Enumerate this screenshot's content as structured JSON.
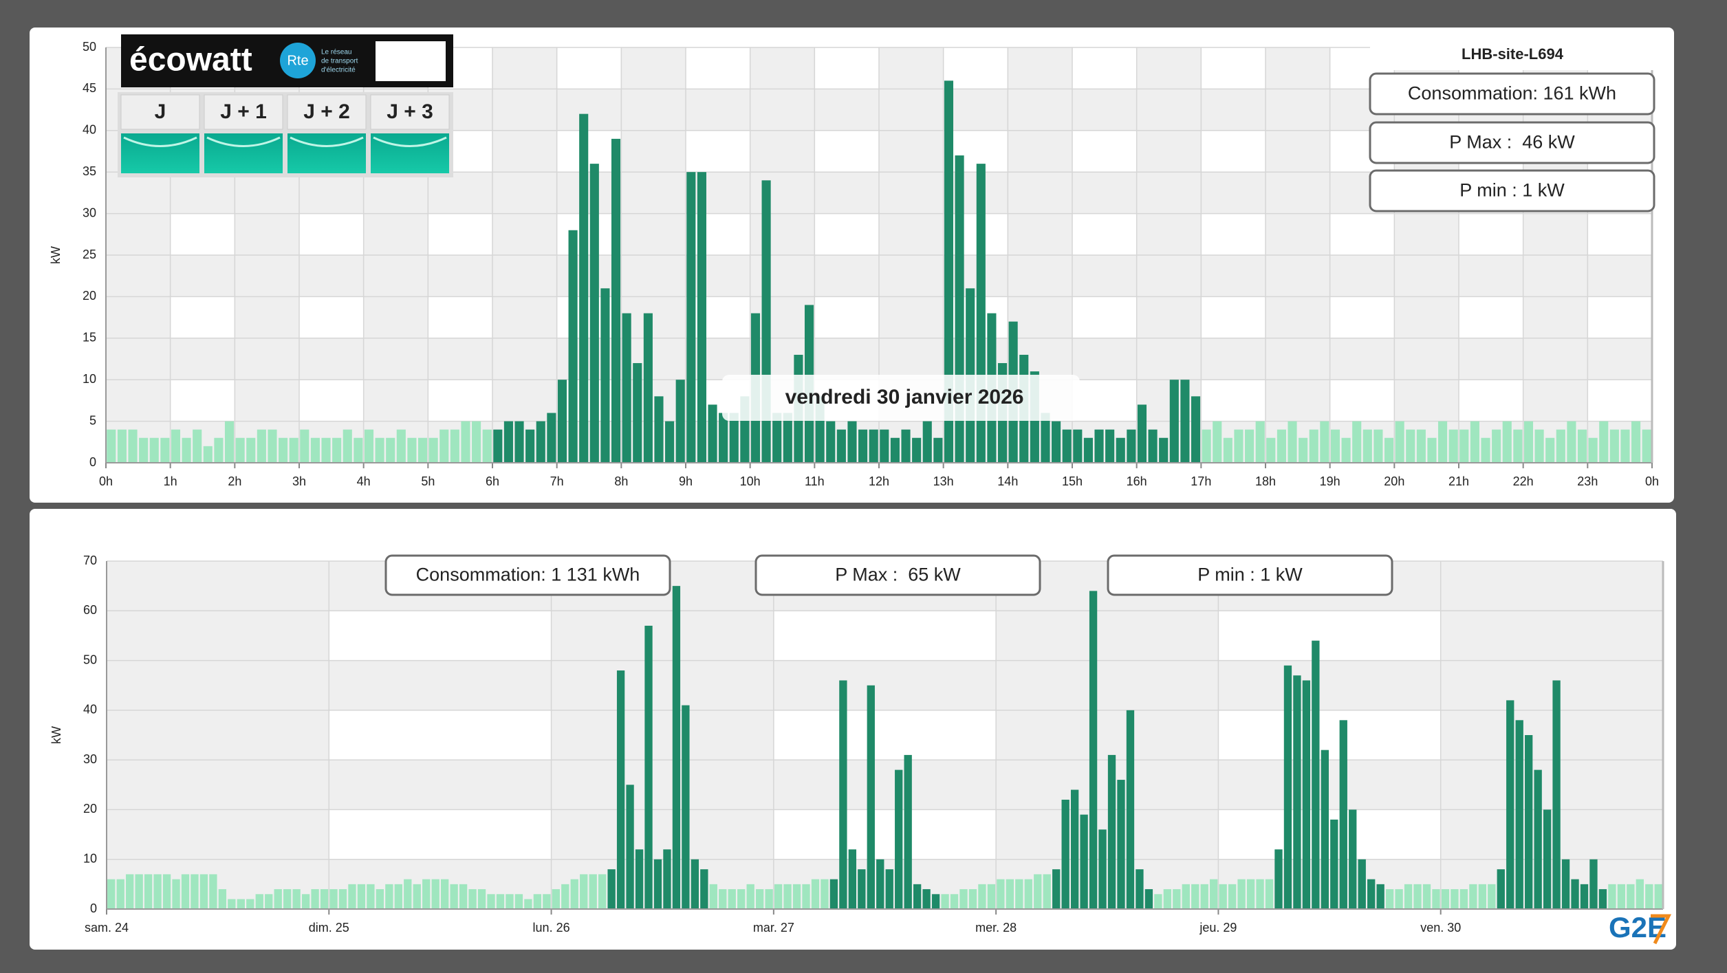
{
  "ecowatt": {
    "brand": "écowatt",
    "rte": "Rte",
    "rte_tagline": [
      "Le réseau",
      "de transport",
      "d'électricité"
    ],
    "days": [
      "J",
      "J + 1",
      "J + 2",
      "J + 3"
    ]
  },
  "logo": "G2E",
  "chart_data": [
    {
      "type": "bar",
      "title": "LHB-site-L694",
      "ylabel": "kW",
      "annotations": [
        "Consommation: 161 kWh",
        "P Max :  46 kW",
        "P min : 1 kW"
      ],
      "tooltip": "vendredi 30 janvier 2026",
      "xlim": [
        0,
        1440
      ],
      "xticks": [
        {
          "value": 0,
          "label": "0h"
        },
        {
          "value": 60,
          "label": "1h"
        },
        {
          "value": 120,
          "label": "2h"
        },
        {
          "value": 180,
          "label": "3h"
        },
        {
          "value": 240,
          "label": "4h"
        },
        {
          "value": 300,
          "label": "5h"
        },
        {
          "value": 360,
          "label": "6h"
        },
        {
          "value": 420,
          "label": "7h"
        },
        {
          "value": 480,
          "label": "8h"
        },
        {
          "value": 540,
          "label": "9h"
        },
        {
          "value": 600,
          "label": "10h"
        },
        {
          "value": 660,
          "label": "11h"
        },
        {
          "value": 720,
          "label": "12h"
        },
        {
          "value": 780,
          "label": "13h"
        },
        {
          "value": 840,
          "label": "14h"
        },
        {
          "value": 900,
          "label": "15h"
        },
        {
          "value": 960,
          "label": "16h"
        },
        {
          "value": 1020,
          "label": "17h"
        },
        {
          "value": 1080,
          "label": "18h"
        },
        {
          "value": 1140,
          "label": "19h"
        },
        {
          "value": 1200,
          "label": "20h"
        },
        {
          "value": 1260,
          "label": "21h"
        },
        {
          "value": 1320,
          "label": "22h"
        },
        {
          "value": 1380,
          "label": "23h"
        },
        {
          "value": 1440,
          "label": "0h"
        }
      ],
      "ylim": [
        0,
        50
      ],
      "yticks": [
        0,
        5,
        10,
        15,
        20,
        25,
        30,
        35,
        40,
        45,
        50
      ],
      "grid": true,
      "x": [
        0,
        10,
        20,
        30,
        40,
        50,
        60,
        70,
        80,
        90,
        100,
        110,
        120,
        130,
        140,
        150,
        160,
        170,
        180,
        190,
        200,
        210,
        220,
        230,
        240,
        250,
        260,
        270,
        280,
        290,
        300,
        310,
        320,
        330,
        340,
        350,
        360,
        370,
        380,
        390,
        400,
        410,
        420,
        430,
        440,
        450,
        460,
        470,
        480,
        490,
        500,
        510,
        520,
        530,
        540,
        550,
        560,
        570,
        580,
        590,
        600,
        610,
        620,
        630,
        640,
        650,
        660,
        670,
        680,
        690,
        700,
        710,
        720,
        730,
        740,
        750,
        760,
        770,
        780,
        790,
        800,
        810,
        820,
        830,
        840,
        850,
        860,
        870,
        880,
        890,
        900,
        910,
        920,
        930,
        940,
        950,
        960,
        970,
        980,
        990,
        1000,
        1010,
        1020,
        1030,
        1040,
        1050,
        1060,
        1070,
        1080,
        1090,
        1100,
        1110,
        1120,
        1130,
        1140,
        1150,
        1160,
        1170,
        1180,
        1190,
        1200,
        1210,
        1220,
        1230,
        1240,
        1250,
        1260,
        1270,
        1280,
        1290,
        1300,
        1310,
        1320,
        1330,
        1340,
        1350,
        1360,
        1370,
        1380,
        1390,
        1400,
        1410,
        1420,
        1430
      ],
      "series": [
        {
          "color": "#9fe6bf",
          "values": [
            4,
            4,
            4,
            3,
            3,
            3,
            4,
            3,
            4,
            2,
            3,
            5,
            3,
            3,
            4,
            4,
            3,
            3,
            4,
            3,
            3,
            3,
            4,
            3,
            4,
            3,
            3,
            4,
            3,
            3,
            3,
            4,
            4,
            5,
            5,
            4,
            null,
            null,
            null,
            null,
            null,
            null,
            null,
            null,
            null,
            null,
            null,
            null,
            null,
            null,
            null,
            null,
            null,
            null,
            null,
            null,
            null,
            null,
            null,
            null,
            null,
            null,
            null,
            null,
            null,
            null,
            null,
            null,
            null,
            null,
            null,
            null,
            null,
            null,
            null,
            null,
            null,
            null,
            null,
            null,
            null,
            null,
            null,
            null,
            null,
            null,
            null,
            null,
            null,
            null,
            null,
            null,
            null,
            null,
            null,
            null,
            null,
            null,
            null,
            null,
            null,
            null,
            4,
            5,
            3,
            4,
            4,
            5,
            3,
            4,
            5,
            3,
            4,
            5,
            4,
            3,
            5,
            4,
            4,
            3,
            5,
            4,
            4,
            3,
            5,
            4,
            4,
            5,
            3,
            4,
            5,
            4,
            5,
            4,
            3,
            4,
            5,
            4,
            3,
            5,
            4,
            4,
            5,
            4
          ]
        },
        {
          "color": "#1f8a68",
          "values": [
            null,
            null,
            null,
            null,
            null,
            null,
            null,
            null,
            null,
            null,
            null,
            null,
            null,
            null,
            null,
            null,
            null,
            null,
            null,
            null,
            null,
            null,
            null,
            null,
            null,
            null,
            null,
            null,
            null,
            null,
            null,
            null,
            null,
            null,
            null,
            null,
            4,
            5,
            5,
            4,
            5,
            6,
            10,
            28,
            42,
            36,
            21,
            39,
            18,
            12,
            18,
            8,
            5,
            10,
            35,
            35,
            7,
            6,
            6,
            8,
            18,
            34,
            6,
            6,
            13,
            19,
            8,
            5,
            4,
            5,
            4,
            4,
            4,
            3,
            4,
            3,
            5,
            3,
            46,
            37,
            21,
            36,
            18,
            12,
            17,
            13,
            11,
            6,
            5,
            4,
            4,
            3,
            4,
            4,
            3,
            4,
            7,
            4,
            3,
            10,
            10,
            8,
            null,
            null,
            null,
            null,
            null,
            null,
            null,
            null,
            null,
            null,
            null,
            null,
            null,
            null,
            null,
            null,
            null,
            null,
            null,
            null,
            null,
            null,
            null,
            null,
            null,
            null,
            null,
            null,
            null,
            null,
            null,
            null,
            null,
            null,
            null,
            null,
            null,
            null,
            null,
            null,
            null,
            null
          ]
        }
      ]
    },
    {
      "type": "bar",
      "ylabel": "kW",
      "annotations": [
        "Consommation: 1 131 kWh",
        "P Max :  65 kW",
        "P min : 1 kW"
      ],
      "xlim": [
        0,
        168
      ],
      "xticks": [
        {
          "value": 0,
          "label": "sam. 24"
        },
        {
          "value": 24,
          "label": "dim. 25"
        },
        {
          "value": 48,
          "label": "lun. 26"
        },
        {
          "value": 72,
          "label": "mar. 27"
        },
        {
          "value": 96,
          "label": "mer. 28"
        },
        {
          "value": 120,
          "label": "jeu. 29"
        },
        {
          "value": 144,
          "label": "ven. 30"
        }
      ],
      "ylim": [
        0,
        70
      ],
      "yticks": [
        0,
        10,
        20,
        30,
        40,
        50,
        60,
        70
      ],
      "grid": true,
      "x": [
        0,
        1,
        2,
        3,
        4,
        5,
        6,
        7,
        8,
        9,
        10,
        11,
        12,
        13,
        14,
        15,
        16,
        17,
        18,
        19,
        20,
        21,
        22,
        23,
        24,
        25,
        26,
        27,
        28,
        29,
        30,
        31,
        32,
        33,
        34,
        35,
        36,
        37,
        38,
        39,
        40,
        41,
        42,
        43,
        44,
        45,
        46,
        47,
        48,
        49,
        50,
        51,
        52,
        53,
        54,
        55,
        56,
        57,
        58,
        59,
        60,
        61,
        62,
        63,
        64,
        65,
        66,
        67,
        68,
        69,
        70,
        71,
        72,
        73,
        74,
        75,
        76,
        77,
        78,
        79,
        80,
        81,
        82,
        83,
        84,
        85,
        86,
        87,
        88,
        89,
        90,
        91,
        92,
        93,
        94,
        95,
        96,
        97,
        98,
        99,
        100,
        101,
        102,
        103,
        104,
        105,
        106,
        107,
        108,
        109,
        110,
        111,
        112,
        113,
        114,
        115,
        116,
        117,
        118,
        119,
        120,
        121,
        122,
        123,
        124,
        125,
        126,
        127,
        128,
        129,
        130,
        131,
        132,
        133,
        134,
        135,
        136,
        137,
        138,
        139,
        140,
        141,
        142,
        143,
        144,
        145,
        146,
        147,
        148,
        149,
        150,
        151,
        152,
        153,
        154,
        155,
        156,
        157,
        158,
        159,
        160,
        161,
        162,
        163,
        164,
        165,
        166,
        167
      ],
      "series": [
        {
          "color": "#9fe6bf",
          "values": [
            6,
            6,
            7,
            7,
            7,
            7,
            7,
            6,
            7,
            7,
            7,
            7,
            4,
            2,
            2,
            2,
            3,
            3,
            4,
            4,
            4,
            3,
            4,
            4,
            4,
            4,
            5,
            5,
            5,
            4,
            5,
            5,
            6,
            5,
            6,
            6,
            6,
            5,
            5,
            4,
            4,
            3,
            3,
            3,
            3,
            2,
            3,
            3,
            4,
            5,
            6,
            7,
            7,
            7,
            null,
            null,
            null,
            null,
            null,
            null,
            null,
            null,
            null,
            null,
            null,
            5,
            4,
            4,
            4,
            5,
            4,
            4,
            5,
            5,
            5,
            5,
            6,
            6,
            null,
            null,
            null,
            null,
            null,
            null,
            null,
            null,
            null,
            null,
            null,
            null,
            3,
            3,
            4,
            4,
            5,
            5,
            6,
            6,
            6,
            6,
            7,
            7,
            null,
            null,
            null,
            null,
            null,
            null,
            null,
            null,
            null,
            null,
            null,
            3,
            4,
            4,
            5,
            5,
            5,
            6,
            5,
            5,
            6,
            6,
            6,
            6,
            null,
            null,
            null,
            null,
            null,
            null,
            null,
            null,
            null,
            null,
            null,
            null,
            4,
            4,
            5,
            5,
            5,
            4,
            4,
            4,
            4,
            5,
            5,
            5,
            null,
            null,
            null,
            null,
            null,
            null,
            null,
            null,
            null,
            null,
            null,
            null,
            5,
            5,
            5,
            6,
            5,
            5
          ]
        },
        {
          "color": "#1f8a68",
          "values": [
            null,
            null,
            null,
            null,
            null,
            null,
            null,
            null,
            null,
            null,
            null,
            null,
            null,
            null,
            null,
            null,
            null,
            null,
            null,
            null,
            null,
            null,
            null,
            null,
            null,
            null,
            null,
            null,
            null,
            null,
            null,
            null,
            null,
            null,
            null,
            null,
            null,
            null,
            null,
            null,
            null,
            null,
            null,
            null,
            null,
            null,
            null,
            null,
            null,
            null,
            null,
            null,
            null,
            null,
            8,
            48,
            25,
            12,
            57,
            10,
            12,
            65,
            41,
            10,
            8,
            null,
            null,
            null,
            null,
            null,
            null,
            null,
            null,
            null,
            null,
            null,
            null,
            null,
            6,
            46,
            12,
            8,
            45,
            10,
            8,
            28,
            31,
            5,
            4,
            3,
            null,
            null,
            null,
            null,
            null,
            null,
            null,
            null,
            null,
            null,
            null,
            null,
            8,
            22,
            24,
            19,
            64,
            16,
            31,
            26,
            40,
            8,
            4,
            null,
            null,
            null,
            null,
            null,
            null,
            null,
            null,
            null,
            null,
            null,
            null,
            null,
            12,
            49,
            47,
            46,
            54,
            32,
            18,
            38,
            20,
            10,
            6,
            5,
            null,
            null,
            null,
            null,
            null,
            null,
            null,
            null,
            null,
            null,
            null,
            null,
            8,
            42,
            38,
            35,
            28,
            20,
            46,
            10,
            6,
            5,
            10,
            4,
            null,
            null,
            null,
            null,
            null,
            null
          ]
        }
      ]
    }
  ]
}
